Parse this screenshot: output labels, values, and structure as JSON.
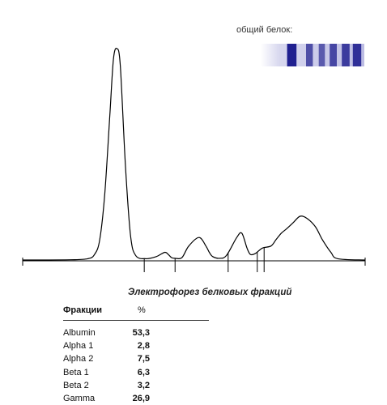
{
  "gel": {
    "label": "общий белок:"
  },
  "chart_title": "Электрофорез белковых фракций",
  "table": {
    "header_fraction": "Фракции",
    "header_percent": "%",
    "rows": [
      {
        "name": "Albumin",
        "value": "53,3"
      },
      {
        "name": "Alpha 1",
        "value": "2,8"
      },
      {
        "name": "Alpha 2",
        "value": "7,5"
      },
      {
        "name": "Beta 1",
        "value": "6,3"
      },
      {
        "name": "Beta 2",
        "value": "3,2"
      },
      {
        "name": "Gamma",
        "value": "26,9"
      }
    ]
  },
  "chart_data": {
    "type": "line",
    "title": "Электрофорез белковых фракций",
    "xlabel": "",
    "ylabel": "",
    "grid": false,
    "xlim": [
      0,
      100
    ],
    "ylim": [
      0,
      100
    ],
    "x": [
      0,
      14,
      19,
      21,
      22.5,
      24,
      25.5,
      26.5,
      27.5,
      28.5,
      30,
      31.5,
      33,
      36,
      39,
      41.5,
      42.5,
      43.5,
      44.5,
      46.5,
      48.5,
      51.5,
      53.5,
      54.5,
      55.5,
      57.5,
      59.5,
      62.5,
      64,
      65.5,
      66.5,
      68,
      70,
      72.5,
      74,
      75.5,
      77,
      79,
      81,
      83,
      85.5,
      87.5,
      90,
      92,
      100
    ],
    "series": [
      {
        "values": [
          0.4,
          0.5,
          1,
          3,
          10,
          32,
          70,
          95,
          100,
          92,
          45,
          12,
          2.5,
          1,
          2,
          4,
          3,
          1.5,
          1.2,
          1.5,
          7,
          11,
          7,
          4,
          2,
          1.2,
          2.5,
          11,
          13,
          6,
          3,
          3.5,
          6,
          7,
          10,
          13,
          15,
          18,
          21,
          20,
          16,
          10,
          4,
          1,
          0.4
        ]
      }
    ],
    "fraction_boundaries_x": [
      35.5,
      44.5,
      60,
      68.5,
      70.5
    ],
    "fractions": [
      {
        "name": "Albumin",
        "percent": 53.3
      },
      {
        "name": "Alpha 1",
        "percent": 2.8
      },
      {
        "name": "Alpha 2",
        "percent": 7.5
      },
      {
        "name": "Beta 1",
        "percent": 6.3
      },
      {
        "name": "Beta 2",
        "percent": 3.2
      },
      {
        "name": "Gamma",
        "percent": 26.9
      }
    ],
    "gel_bands": [
      {
        "position": 0.3,
        "intensity": 0.95
      },
      {
        "position": 0.47,
        "intensity": 0.55
      },
      {
        "position": 0.59,
        "intensity": 0.45
      },
      {
        "position": 0.7,
        "intensity": 0.6
      },
      {
        "position": 0.82,
        "intensity": 0.7
      },
      {
        "position": 0.93,
        "intensity": 0.8
      }
    ],
    "colors": {
      "curve": "#000000",
      "gel_band": "#1a1a8c"
    }
  }
}
